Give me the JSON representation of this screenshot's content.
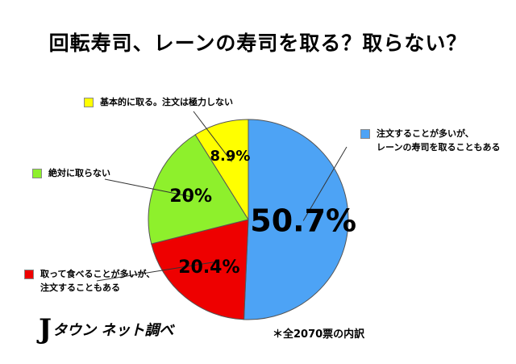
{
  "title": "回転寿司、レーンの寿司を取る？取らない？",
  "chart_data": {
    "type": "pie",
    "slices": [
      {
        "label_lines": [
          "注文することが多いが、",
          "レーンの寿司を取ることもある"
        ],
        "value": 50.7,
        "display": "50.7%",
        "color": "#4da3f5"
      },
      {
        "label_lines": [
          "取って食べることが多いが、",
          "注文することもある"
        ],
        "value": 20.4,
        "display": "20.4%",
        "color": "#ee0000"
      },
      {
        "label_lines": [
          "絶対に取らない"
        ],
        "value": 20,
        "display": "20%",
        "color": "#8ef02c"
      },
      {
        "label_lines": [
          "基本的に取る。注文は極力しない"
        ],
        "value": 8.9,
        "display": "8.9%",
        "color": "#ffff00"
      }
    ]
  },
  "brand": {
    "mark": "J",
    "text": "タウン ネット調べ"
  },
  "note": "＊全2070票の内訳"
}
